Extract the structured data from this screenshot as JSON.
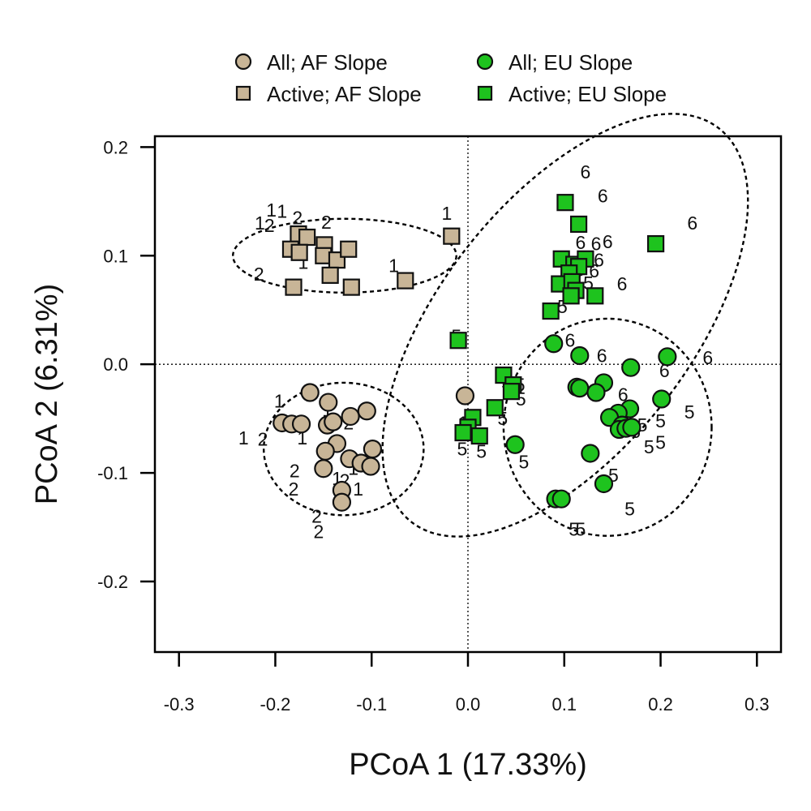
{
  "chart_data": {
    "type": "scatter",
    "xlabel": "PCoA 1 (17.33%)",
    "ylabel": "PCoA 2 (6.31%)",
    "xlim": [
      -0.325,
      0.325
    ],
    "ylim": [
      -0.265,
      0.21
    ],
    "xticks": [
      -0.3,
      -0.2,
      -0.1,
      0.0,
      0.1,
      0.2,
      0.3
    ],
    "xtick_labels": [
      "-0.3",
      "-0.2",
      "-0.1",
      "0.0",
      "0.1",
      "0.2",
      "0.3"
    ],
    "yticks": [
      -0.2,
      -0.1,
      0.0,
      0.1,
      0.2
    ],
    "ytick_labels": [
      "-0.2",
      "-0.1",
      "0.0",
      "0.1",
      "0.2"
    ],
    "reference_lines": {
      "x": 0,
      "y": 0
    },
    "legend": {
      "position": "top",
      "entries": [
        {
          "label": "All; AF Slope",
          "shape": "circle",
          "color": "#c8b597"
        },
        {
          "label": "All; EU Slope",
          "shape": "circle",
          "color": "#1ec31e"
        },
        {
          "label": "Active; AF Slope",
          "shape": "square",
          "color": "#c8b597"
        },
        {
          "label": "Active; EU Slope",
          "shape": "square",
          "color": "#1ec31e"
        }
      ]
    },
    "series": [
      {
        "name": "All; AF Slope",
        "shape": "circle",
        "color": "#c8b597",
        "points": [
          [
            -0.164,
            -0.026
          ],
          [
            -0.145,
            -0.035
          ],
          [
            -0.193,
            -0.054
          ],
          [
            -0.183,
            -0.055
          ],
          [
            -0.173,
            -0.055
          ],
          [
            -0.146,
            -0.056
          ],
          [
            -0.14,
            -0.053
          ],
          [
            -0.122,
            -0.048
          ],
          [
            -0.105,
            -0.043
          ],
          [
            -0.136,
            -0.073
          ],
          [
            -0.148,
            -0.08
          ],
          [
            -0.099,
            -0.078
          ],
          [
            -0.123,
            -0.087
          ],
          [
            -0.111,
            -0.091
          ],
          [
            -0.101,
            -0.094
          ],
          [
            -0.15,
            -0.096
          ],
          [
            -0.131,
            -0.116
          ],
          [
            -0.131,
            -0.127
          ],
          [
            -0.003,
            -0.029
          ]
        ]
      },
      {
        "name": "Active; AF Slope",
        "shape": "square",
        "color": "#c8b597",
        "points": [
          [
            -0.176,
            0.12
          ],
          [
            -0.167,
            0.117
          ],
          [
            -0.149,
            0.11
          ],
          [
            -0.184,
            0.106
          ],
          [
            -0.175,
            0.103
          ],
          [
            -0.15,
            0.1
          ],
          [
            -0.136,
            0.096
          ],
          [
            -0.124,
            0.106
          ],
          [
            -0.143,
            0.082
          ],
          [
            -0.181,
            0.071
          ],
          [
            -0.121,
            0.071
          ],
          [
            -0.065,
            0.077
          ],
          [
            -0.017,
            0.118
          ]
        ]
      },
      {
        "name": "All; EU Slope",
        "shape": "circle",
        "color": "#1ec31e",
        "points": [
          [
            0.089,
            0.019
          ],
          [
            0.116,
            0.008
          ],
          [
            0.207,
            0.007
          ],
          [
            0.169,
            -0.003
          ],
          [
            0.141,
            -0.017
          ],
          [
            0.113,
            -0.021
          ],
          [
            0.116,
            -0.022
          ],
          [
            0.133,
            -0.026
          ],
          [
            0.201,
            -0.032
          ],
          [
            0.168,
            -0.041
          ],
          [
            0.156,
            -0.045
          ],
          [
            0.147,
            -0.049
          ],
          [
            0.16,
            -0.056
          ],
          [
            0.157,
            -0.06
          ],
          [
            0.164,
            -0.059
          ],
          [
            0.17,
            -0.058
          ],
          [
            0.049,
            -0.074
          ],
          [
            0.127,
            -0.082
          ],
          [
            0.141,
            -0.11
          ],
          [
            0.091,
            -0.124
          ],
          [
            0.097,
            -0.124
          ]
        ]
      },
      {
        "name": "Active; EU Slope",
        "shape": "square",
        "color": "#1ec31e",
        "points": [
          [
            0.101,
            0.149
          ],
          [
            0.115,
            0.129
          ],
          [
            0.195,
            0.111
          ],
          [
            0.097,
            0.097
          ],
          [
            0.11,
            0.092
          ],
          [
            0.122,
            0.097
          ],
          [
            0.115,
            0.09
          ],
          [
            0.105,
            0.084
          ],
          [
            0.095,
            0.074
          ],
          [
            0.108,
            0.076
          ],
          [
            0.112,
            0.068
          ],
          [
            0.107,
            0.063
          ],
          [
            0.132,
            0.063
          ],
          [
            0.086,
            0.049
          ],
          [
            -0.01,
            0.022
          ],
          [
            0.037,
            -0.01
          ],
          [
            0.047,
            -0.019
          ],
          [
            0.045,
            -0.025
          ],
          [
            0.028,
            -0.04
          ],
          [
            0.005,
            -0.049
          ],
          [
            0.0,
            -0.058
          ],
          [
            -0.005,
            -0.063
          ],
          [
            0.012,
            -0.066
          ]
        ]
      }
    ],
    "point_labels": [
      {
        "text": "1",
        "x": -0.204,
        "y": 0.142
      },
      {
        "text": "1",
        "x": -0.193,
        "y": 0.141
      },
      {
        "text": "1",
        "x": -0.216,
        "y": 0.13
      },
      {
        "text": "2",
        "x": -0.206,
        "y": 0.128
      },
      {
        "text": "2",
        "x": -0.177,
        "y": 0.135
      },
      {
        "text": "2",
        "x": -0.147,
        "y": 0.131
      },
      {
        "text": "1",
        "x": -0.171,
        "y": 0.094
      },
      {
        "text": "2",
        "x": -0.217,
        "y": 0.083
      },
      {
        "text": "1",
        "x": -0.022,
        "y": 0.139
      },
      {
        "text": "1",
        "x": -0.077,
        "y": 0.091
      },
      {
        "text": "1",
        "x": -0.196,
        "y": -0.034
      },
      {
        "text": "1",
        "x": -0.146,
        "y": -0.042
      },
      {
        "text": "2",
        "x": -0.146,
        "y": -0.054
      },
      {
        "text": "2",
        "x": -0.124,
        "y": -0.054
      },
      {
        "text": "1",
        "x": -0.233,
        "y": -0.068
      },
      {
        "text": "2",
        "x": -0.213,
        "y": -0.069
      },
      {
        "text": "1",
        "x": -0.172,
        "y": -0.068
      },
      {
        "text": "1",
        "x": -0.119,
        "y": -0.096
      },
      {
        "text": "2",
        "x": -0.18,
        "y": -0.098
      },
      {
        "text": "2",
        "x": -0.181,
        "y": -0.115
      },
      {
        "text": "1",
        "x": -0.136,
        "y": -0.105
      },
      {
        "text": "2",
        "x": -0.128,
        "y": -0.107
      },
      {
        "text": "1",
        "x": -0.114,
        "y": -0.115
      },
      {
        "text": "2",
        "x": -0.157,
        "y": -0.14
      },
      {
        "text": "2",
        "x": -0.155,
        "y": -0.154
      },
      {
        "text": "1",
        "x": -0.005,
        "y": -0.054
      },
      {
        "text": "6",
        "x": 0.122,
        "y": 0.177
      },
      {
        "text": "6",
        "x": 0.14,
        "y": 0.155
      },
      {
        "text": "6",
        "x": 0.233,
        "y": 0.13
      },
      {
        "text": "6",
        "x": 0.117,
        "y": 0.112
      },
      {
        "text": "6",
        "x": 0.133,
        "y": 0.111
      },
      {
        "text": "6",
        "x": 0.145,
        "y": 0.113
      },
      {
        "text": "6",
        "x": 0.136,
        "y": 0.096
      },
      {
        "text": "6",
        "x": 0.116,
        "y": 0.087
      },
      {
        "text": "6",
        "x": 0.131,
        "y": 0.086
      },
      {
        "text": "5",
        "x": 0.125,
        "y": 0.075
      },
      {
        "text": "6",
        "x": 0.16,
        "y": 0.074
      },
      {
        "text": "5",
        "x": 0.098,
        "y": 0.053
      },
      {
        "text": "6",
        "x": 0.106,
        "y": 0.022
      },
      {
        "text": "6",
        "x": 0.139,
        "y": 0.008
      },
      {
        "text": "6",
        "x": 0.249,
        "y": 0.006
      },
      {
        "text": "6",
        "x": 0.204,
        "y": -0.006
      },
      {
        "text": "6",
        "x": 0.134,
        "y": -0.027
      },
      {
        "text": "6",
        "x": 0.161,
        "y": -0.028
      },
      {
        "text": "5",
        "x": 0.04,
        "y": -0.017
      },
      {
        "text": "5",
        "x": 0.054,
        "y": -0.019
      },
      {
        "text": "5",
        "x": 0.055,
        "y": -0.032
      },
      {
        "text": "5",
        "x": 0.036,
        "y": -0.05
      },
      {
        "text": "5",
        "x": 0.23,
        "y": -0.044
      },
      {
        "text": "5",
        "x": 0.2,
        "y": -0.052
      },
      {
        "text": "5",
        "x": 0.181,
        "y": -0.056
      },
      {
        "text": "6",
        "x": 0.174,
        "y": -0.062
      },
      {
        "text": "5",
        "x": 0.2,
        "y": -0.072
      },
      {
        "text": "5",
        "x": 0.188,
        "y": -0.076
      },
      {
        "text": "5",
        "x": -0.006,
        "y": -0.078
      },
      {
        "text": "5",
        "x": 0.014,
        "y": -0.08
      },
      {
        "text": "5",
        "x": 0.058,
        "y": -0.09
      },
      {
        "text": "5",
        "x": 0.151,
        "y": -0.102
      },
      {
        "text": "5",
        "x": 0.168,
        "y": -0.133
      },
      {
        "text": "5",
        "x": 0.11,
        "y": -0.152
      },
      {
        "text": "5",
        "x": 0.117,
        "y": -0.152
      },
      {
        "text": "5",
        "x": -0.012,
        "y": 0.026
      }
    ],
    "ellipses": [
      {
        "group": "Active; AF Slope",
        "cx": -0.128,
        "cy": 0.1,
        "rx": 0.116,
        "ry": 0.034,
        "angle": 0
      },
      {
        "group": "All; AF Slope",
        "cx": -0.129,
        "cy": -0.078,
        "rx": 0.083,
        "ry": 0.061,
        "angle": 0
      },
      {
        "group": "Active; EU Slope",
        "cx": 0.101,
        "cy": 0.036,
        "rx": 0.13,
        "ry": 0.23,
        "angle": 38
      },
      {
        "group": "All; EU Slope",
        "cx": 0.145,
        "cy": -0.058,
        "rx": 0.108,
        "ry": 0.1,
        "angle": 0
      }
    ]
  }
}
